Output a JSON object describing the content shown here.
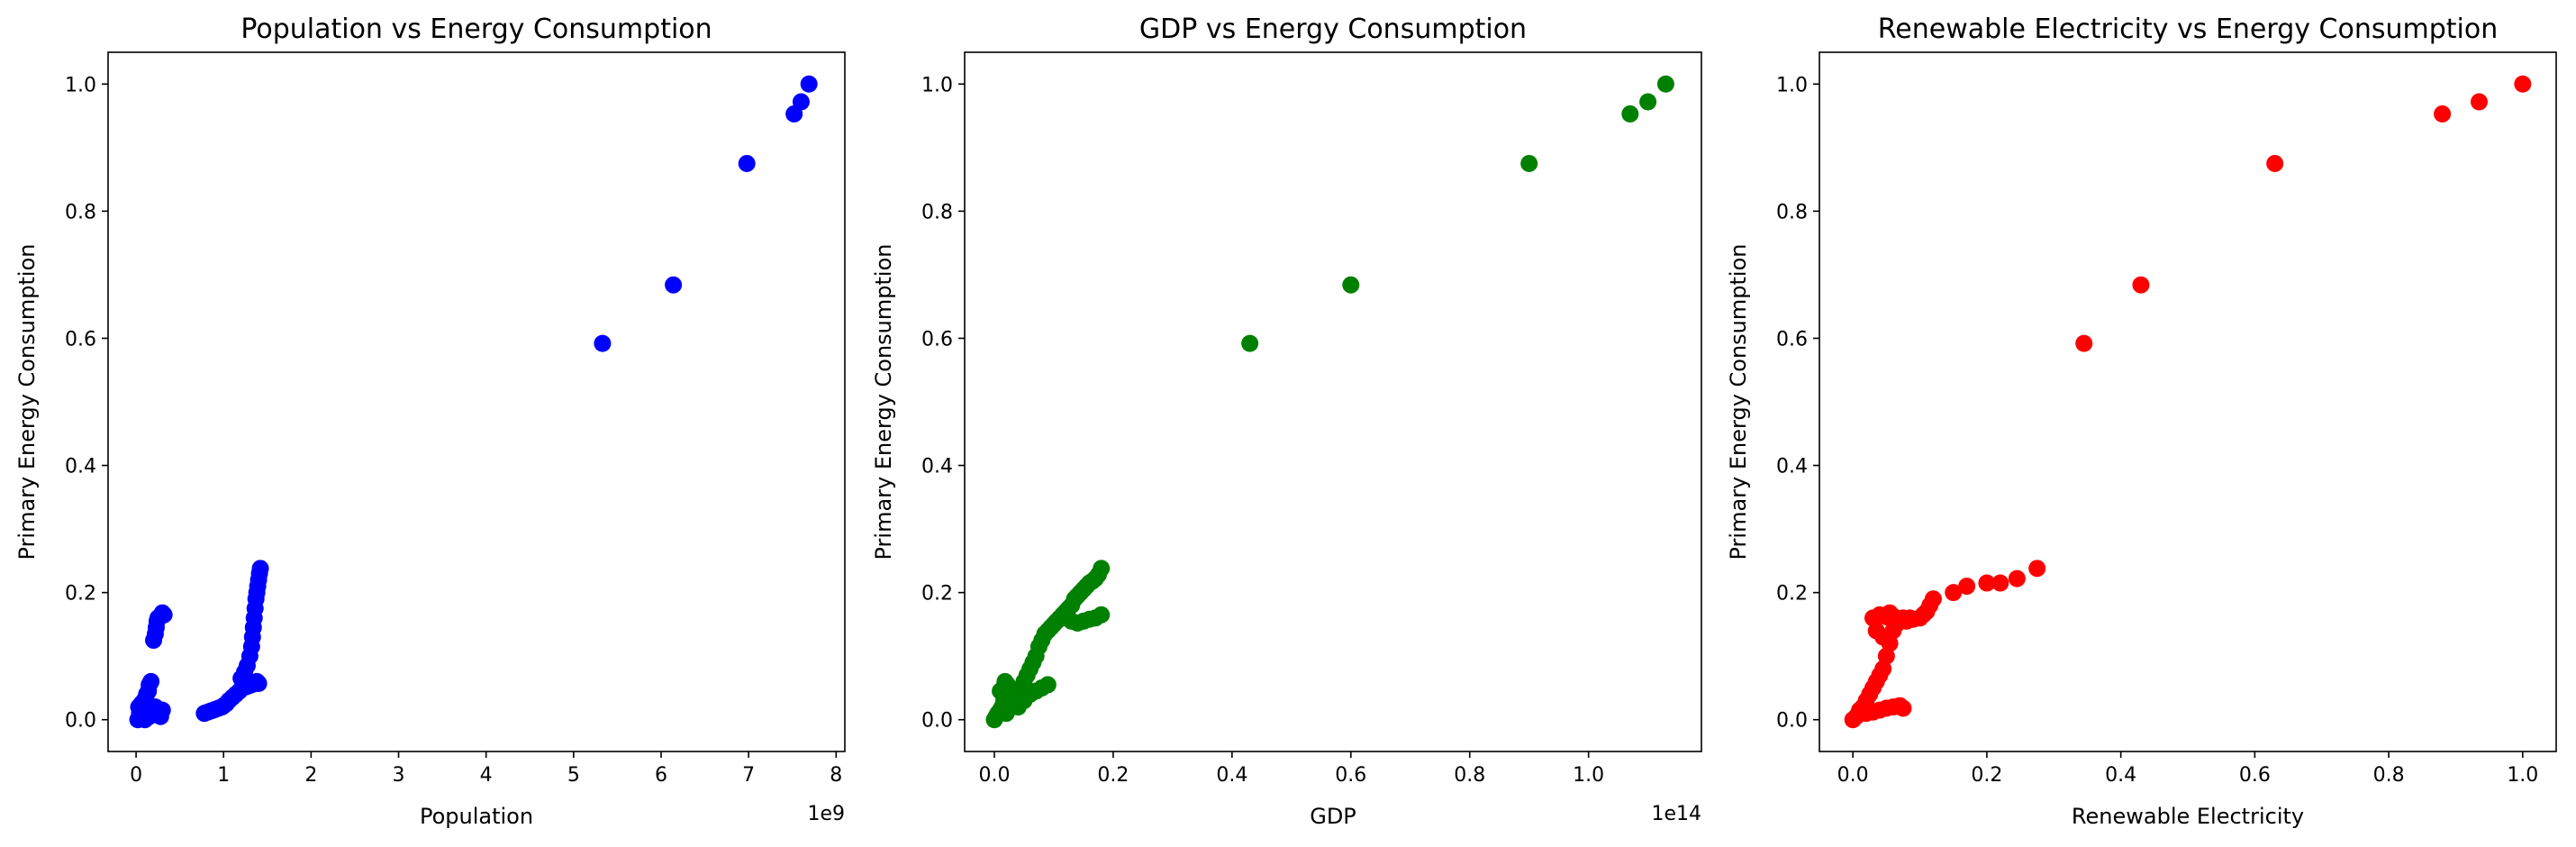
{
  "chart_data": [
    {
      "type": "scatter",
      "title": "Population vs Energy Consumption",
      "xlabel": "Population",
      "ylabel": "Primary Energy Consumption",
      "x_offset_label": "1e9",
      "color": "#0000ff",
      "xlim": [
        -0.32,
        8.1
      ],
      "ylim": [
        -0.05,
        1.05
      ],
      "xticks": [
        0,
        1,
        2,
        3,
        4,
        5,
        6,
        7,
        8
      ],
      "xtick_labels": [
        "0",
        "1",
        "2",
        "3",
        "4",
        "5",
        "6",
        "7",
        "8"
      ],
      "yticks": [
        0.0,
        0.2,
        0.4,
        0.6,
        0.8,
        1.0
      ],
      "ytick_labels": [
        "0.0",
        "0.2",
        "0.4",
        "0.6",
        "0.8",
        "1.0"
      ],
      "points": [
        [
          0.02,
          0.0
        ],
        [
          0.05,
          0.005
        ],
        [
          0.08,
          0.002
        ],
        [
          0.1,
          0.01
        ],
        [
          0.12,
          0.015
        ],
        [
          0.15,
          0.005
        ],
        [
          0.2,
          0.008
        ],
        [
          0.25,
          0.012
        ],
        [
          0.03,
          0.02
        ],
        [
          0.06,
          0.025
        ],
        [
          0.09,
          0.03
        ],
        [
          0.12,
          0.04
        ],
        [
          0.15,
          0.055
        ],
        [
          0.17,
          0.06
        ],
        [
          0.14,
          0.045
        ],
        [
          0.18,
          0.01
        ],
        [
          0.22,
          0.02
        ],
        [
          0.26,
          0.01
        ],
        [
          0.28,
          0.005
        ],
        [
          0.3,
          0.015
        ],
        [
          0.1,
          0.0
        ],
        [
          0.04,
          0.01
        ],
        [
          0.07,
          0.015
        ],
        [
          0.11,
          0.025
        ],
        [
          0.2,
          0.125
        ],
        [
          0.22,
          0.135
        ],
        [
          0.23,
          0.145
        ],
        [
          0.24,
          0.155
        ],
        [
          0.25,
          0.16
        ],
        [
          0.27,
          0.162
        ],
        [
          0.29,
          0.165
        ],
        [
          0.3,
          0.168
        ],
        [
          0.32,
          0.165
        ],
        [
          0.78,
          0.01
        ],
        [
          0.82,
          0.012
        ],
        [
          0.86,
          0.014
        ],
        [
          0.9,
          0.016
        ],
        [
          0.94,
          0.018
        ],
        [
          0.98,
          0.02
        ],
        [
          1.0,
          0.022
        ],
        [
          1.03,
          0.025
        ],
        [
          1.06,
          0.03
        ],
        [
          1.1,
          0.035
        ],
        [
          1.14,
          0.04
        ],
        [
          1.18,
          0.045
        ],
        [
          1.22,
          0.05
        ],
        [
          1.26,
          0.052
        ],
        [
          1.3,
          0.054
        ],
        [
          1.34,
          0.056
        ],
        [
          1.38,
          0.06
        ],
        [
          1.4,
          0.057
        ],
        [
          1.2,
          0.065
        ],
        [
          1.24,
          0.075
        ],
        [
          1.27,
          0.085
        ],
        [
          1.3,
          0.1
        ],
        [
          1.32,
          0.115
        ],
        [
          1.33,
          0.13
        ],
        [
          1.34,
          0.145
        ],
        [
          1.35,
          0.16
        ],
        [
          1.36,
          0.175
        ],
        [
          1.37,
          0.19
        ],
        [
          1.38,
          0.2
        ],
        [
          1.39,
          0.21
        ],
        [
          1.4,
          0.22
        ],
        [
          1.41,
          0.23
        ],
        [
          1.42,
          0.238
        ],
        [
          5.33,
          0.592
        ],
        [
          6.14,
          0.684
        ],
        [
          6.98,
          0.875
        ],
        [
          7.52,
          0.953
        ],
        [
          7.6,
          0.972
        ],
        [
          7.69,
          1.0
        ]
      ]
    },
    {
      "type": "scatter",
      "title": "GDP vs Energy Consumption",
      "xlabel": "GDP",
      "ylabel": "Primary Energy Consumption",
      "x_offset_label": "1e14",
      "color": "#008000",
      "xlim": [
        -0.05,
        1.19
      ],
      "ylim": [
        -0.05,
        1.05
      ],
      "xticks": [
        0.0,
        0.2,
        0.4,
        0.6,
        0.8,
        1.0
      ],
      "xtick_labels": [
        "0.0",
        "0.2",
        "0.4",
        "0.6",
        "0.8",
        "1.0"
      ],
      "yticks": [
        0.0,
        0.2,
        0.4,
        0.6,
        0.8,
        1.0
      ],
      "ytick_labels": [
        "0.0",
        "0.2",
        "0.4",
        "0.6",
        "0.8",
        "1.0"
      ],
      "points": [
        [
          0.0,
          0.0
        ],
        [
          0.003,
          0.005
        ],
        [
          0.006,
          0.01
        ],
        [
          0.01,
          0.015
        ],
        [
          0.013,
          0.02
        ],
        [
          0.016,
          0.03
        ],
        [
          0.02,
          0.04
        ],
        [
          0.015,
          0.05
        ],
        [
          0.018,
          0.06
        ],
        [
          0.022,
          0.055
        ],
        [
          0.01,
          0.045
        ],
        [
          0.03,
          0.02
        ],
        [
          0.035,
          0.03
        ],
        [
          0.04,
          0.04
        ],
        [
          0.045,
          0.05
        ],
        [
          0.05,
          0.06
        ],
        [
          0.055,
          0.07
        ],
        [
          0.06,
          0.08
        ],
        [
          0.065,
          0.09
        ],
        [
          0.07,
          0.1
        ],
        [
          0.075,
          0.115
        ],
        [
          0.08,
          0.125
        ],
        [
          0.085,
          0.135
        ],
        [
          0.09,
          0.14
        ],
        [
          0.095,
          0.145
        ],
        [
          0.1,
          0.15
        ],
        [
          0.105,
          0.155
        ],
        [
          0.11,
          0.16
        ],
        [
          0.115,
          0.165
        ],
        [
          0.12,
          0.17
        ],
        [
          0.125,
          0.175
        ],
        [
          0.13,
          0.18
        ],
        [
          0.135,
          0.19
        ],
        [
          0.14,
          0.195
        ],
        [
          0.145,
          0.2
        ],
        [
          0.15,
          0.205
        ],
        [
          0.155,
          0.21
        ],
        [
          0.16,
          0.215
        ],
        [
          0.165,
          0.218
        ],
        [
          0.17,
          0.222
        ],
        [
          0.175,
          0.228
        ],
        [
          0.18,
          0.238
        ],
        [
          0.12,
          0.16
        ],
        [
          0.13,
          0.155
        ],
        [
          0.14,
          0.152
        ],
        [
          0.15,
          0.155
        ],
        [
          0.16,
          0.158
        ],
        [
          0.17,
          0.16
        ],
        [
          0.18,
          0.165
        ],
        [
          0.04,
          0.02
        ],
        [
          0.05,
          0.03
        ],
        [
          0.06,
          0.04
        ],
        [
          0.07,
          0.045
        ],
        [
          0.08,
          0.05
        ],
        [
          0.09,
          0.055
        ],
        [
          0.02,
          0.01
        ],
        [
          0.43,
          0.592
        ],
        [
          0.6,
          0.684
        ],
        [
          0.9,
          0.875
        ],
        [
          1.07,
          0.953
        ],
        [
          1.1,
          0.972
        ],
        [
          1.13,
          1.0
        ]
      ]
    },
    {
      "type": "scatter",
      "title": "Renewable Electricity vs Energy Consumption",
      "xlabel": "Renewable Electricity",
      "ylabel": "Primary Energy Consumption",
      "x_offset_label": "",
      "color": "#ff0000",
      "xlim": [
        -0.05,
        1.05
      ],
      "ylim": [
        -0.05,
        1.05
      ],
      "xticks": [
        0.0,
        0.2,
        0.4,
        0.6,
        0.8,
        1.0
      ],
      "xtick_labels": [
        "0.0",
        "0.2",
        "0.4",
        "0.6",
        "0.8",
        "1.0"
      ],
      "yticks": [
        0.0,
        0.2,
        0.4,
        0.6,
        0.8,
        1.0
      ],
      "ytick_labels": [
        "0.0",
        "0.2",
        "0.4",
        "0.6",
        "0.8",
        "1.0"
      ],
      "points": [
        [
          0.0,
          0.0
        ],
        [
          0.005,
          0.005
        ],
        [
          0.01,
          0.01
        ],
        [
          0.015,
          0.02
        ],
        [
          0.02,
          0.03
        ],
        [
          0.025,
          0.04
        ],
        [
          0.03,
          0.05
        ],
        [
          0.035,
          0.06
        ],
        [
          0.04,
          0.07
        ],
        [
          0.045,
          0.08
        ],
        [
          0.05,
          0.1
        ],
        [
          0.055,
          0.12
        ],
        [
          0.06,
          0.14
        ],
        [
          0.065,
          0.15
        ],
        [
          0.07,
          0.155
        ],
        [
          0.075,
          0.16
        ],
        [
          0.08,
          0.155
        ],
        [
          0.085,
          0.16
        ],
        [
          0.09,
          0.158
        ],
        [
          0.1,
          0.16
        ],
        [
          0.105,
          0.165
        ],
        [
          0.11,
          0.17
        ],
        [
          0.115,
          0.18
        ],
        [
          0.12,
          0.19
        ],
        [
          0.15,
          0.2
        ],
        [
          0.17,
          0.21
        ],
        [
          0.2,
          0.215
        ],
        [
          0.22,
          0.215
        ],
        [
          0.245,
          0.222
        ],
        [
          0.275,
          0.238
        ],
        [
          0.01,
          0.015
        ],
        [
          0.02,
          0.01
        ],
        [
          0.03,
          0.012
        ],
        [
          0.04,
          0.015
        ],
        [
          0.05,
          0.018
        ],
        [
          0.06,
          0.02
        ],
        [
          0.07,
          0.022
        ],
        [
          0.075,
          0.018
        ],
        [
          0.03,
          0.16
        ],
        [
          0.04,
          0.165
        ],
        [
          0.05,
          0.162
        ],
        [
          0.055,
          0.168
        ],
        [
          0.06,
          0.163
        ],
        [
          0.035,
          0.14
        ],
        [
          0.045,
          0.13
        ],
        [
          0.345,
          0.592
        ],
        [
          0.43,
          0.684
        ],
        [
          0.63,
          0.875
        ],
        [
          0.88,
          0.953
        ],
        [
          0.935,
          0.972
        ],
        [
          1.0,
          1.0
        ]
      ]
    }
  ]
}
